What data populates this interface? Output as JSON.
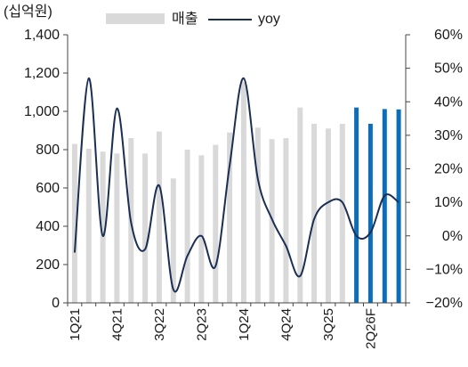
{
  "chart_data": {
    "type": "bar+line",
    "unit_label": "(십억원)",
    "legend": [
      {
        "label": "매출",
        "kind": "bar"
      },
      {
        "label": "yoy",
        "kind": "line"
      }
    ],
    "categories": [
      "1Q21",
      "2Q21",
      "3Q21",
      "4Q21",
      "1Q22",
      "2Q22",
      "3Q22",
      "4Q22",
      "1Q23",
      "2Q23",
      "3Q23",
      "4Q23",
      "1Q24",
      "2Q24",
      "3Q24",
      "4Q24",
      "1Q25",
      "2Q25",
      "3Q25",
      "4Q25",
      "1Q26F",
      "2Q26F",
      "3Q26F",
      "4Q26F"
    ],
    "x_tick_labels": [
      "1Q21",
      "4Q21",
      "3Q22",
      "2Q23",
      "1Q24",
      "4Q24",
      "3Q25",
      "2Q26F"
    ],
    "forecast_start_index": 20,
    "series": [
      {
        "name": "매출",
        "axis": "left",
        "type": "bar",
        "values": [
          830,
          805,
          790,
          780,
          860,
          780,
          895,
          650,
          800,
          770,
          825,
          890,
          1155,
          915,
          855,
          860,
          1020,
          935,
          910,
          935,
          1020,
          935,
          1012,
          1010
        ]
      },
      {
        "name": "yoy",
        "axis": "right",
        "type": "line",
        "values": [
          -5,
          47,
          0,
          38,
          4,
          -4,
          15,
          -16,
          -6,
          0,
          -9,
          21,
          47,
          17,
          5,
          -3,
          -12,
          5,
          10,
          10,
          0,
          1,
          12,
          10
        ]
      }
    ],
    "y_left": {
      "min": 0,
      "max": 1400,
      "step": 200,
      "tick_labels": [
        "0",
        "200",
        "400",
        "600",
        "800",
        "1,000",
        "1,200",
        "1,400"
      ]
    },
    "y_right": {
      "min": -20,
      "max": 60,
      "step": 10,
      "tick_labels": [
        "−20%",
        "−10%",
        "0%",
        "10%",
        "20%",
        "30%",
        "40%",
        "50%",
        "60%"
      ]
    },
    "grid": false,
    "legend_position": "top",
    "colors": {
      "bar_actual": "#d9d9d9",
      "bar_forecast": "#0c6db8",
      "line": "#1b2f55",
      "axis": "#444444"
    }
  }
}
